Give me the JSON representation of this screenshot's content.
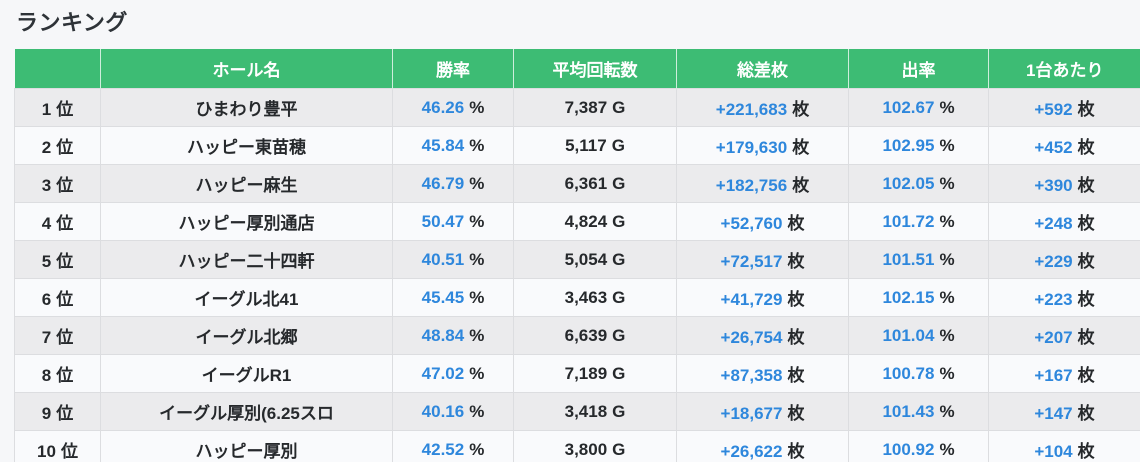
{
  "page": {
    "title": "ランキング"
  },
  "colors": {
    "header_bg": "#3dbc74",
    "header_text": "#ffffff",
    "value_blue": "#2e87dc",
    "text_dark": "#26292c",
    "row_odd_bg": "#ebebed",
    "row_even_bg": "#f9fafc",
    "page_bg": "#f6f7f9"
  },
  "table": {
    "columns": [
      {
        "key": "rank",
        "label": ""
      },
      {
        "key": "name",
        "label": "ホール名"
      },
      {
        "key": "win_rate",
        "label": "勝率"
      },
      {
        "key": "avg_spins",
        "label": "平均回転数"
      },
      {
        "key": "total_diff",
        "label": "総差枚"
      },
      {
        "key": "payout",
        "label": "出率"
      },
      {
        "key": "per_unit",
        "label": "1台あたり"
      }
    ],
    "units": {
      "rank": "位",
      "win_rate": "%",
      "avg_spins": "G",
      "total_diff": "枚",
      "payout": "%",
      "per_unit": "枚"
    },
    "rows": [
      {
        "rank": "1",
        "name": "ひまわり豊平",
        "win_rate": "46.26",
        "avg_spins": "7,387",
        "total_diff": "+221,683",
        "payout": "102.67",
        "per_unit": "+592"
      },
      {
        "rank": "2",
        "name": "ハッピー東苗穂",
        "win_rate": "45.84",
        "avg_spins": "5,117",
        "total_diff": "+179,630",
        "payout": "102.95",
        "per_unit": "+452"
      },
      {
        "rank": "3",
        "name": "ハッピー麻生",
        "win_rate": "46.79",
        "avg_spins": "6,361",
        "total_diff": "+182,756",
        "payout": "102.05",
        "per_unit": "+390"
      },
      {
        "rank": "4",
        "name": "ハッピー厚別通店",
        "win_rate": "50.47",
        "avg_spins": "4,824",
        "total_diff": "+52,760",
        "payout": "101.72",
        "per_unit": "+248"
      },
      {
        "rank": "5",
        "name": "ハッピー二十四軒",
        "win_rate": "40.51",
        "avg_spins": "5,054",
        "total_diff": "+72,517",
        "payout": "101.51",
        "per_unit": "+229"
      },
      {
        "rank": "6",
        "name": "イーグル北41",
        "win_rate": "45.45",
        "avg_spins": "3,463",
        "total_diff": "+41,729",
        "payout": "102.15",
        "per_unit": "+223"
      },
      {
        "rank": "7",
        "name": "イーグル北郷",
        "win_rate": "48.84",
        "avg_spins": "6,639",
        "total_diff": "+26,754",
        "payout": "101.04",
        "per_unit": "+207"
      },
      {
        "rank": "8",
        "name": "イーグルR1",
        "win_rate": "47.02",
        "avg_spins": "7,189",
        "total_diff": "+87,358",
        "payout": "100.78",
        "per_unit": "+167"
      },
      {
        "rank": "9",
        "name": "イーグル厚別(6.25スロ",
        "win_rate": "40.16",
        "avg_spins": "3,418",
        "total_diff": "+18,677",
        "payout": "101.43",
        "per_unit": "+147"
      },
      {
        "rank": "10",
        "name": "ハッピー厚別",
        "win_rate": "42.52",
        "avg_spins": "3,800",
        "total_diff": "+26,622",
        "payout": "100.92",
        "per_unit": "+104"
      }
    ]
  }
}
